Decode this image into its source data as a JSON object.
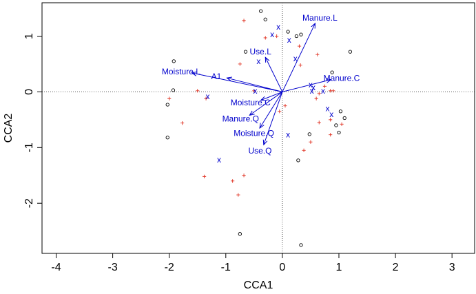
{
  "chart_data": {
    "type": "scatter",
    "xlabel": "CCA1",
    "ylabel": "CCA2",
    "xlim": [
      -4.25,
      3.4
    ],
    "ylim": [
      -2.9,
      1.6
    ],
    "x_ticks": [
      "-4",
      "-3",
      "-2",
      "-1",
      "0",
      "1",
      "2",
      "3"
    ],
    "y_ticks": [
      "-2",
      "-1",
      "0",
      "1"
    ],
    "reference_lines": {
      "x": 0,
      "y": 0,
      "style": "dotted"
    },
    "colors": {
      "sites": "#000000",
      "species": "#e03020",
      "centroids": "#0000cc",
      "arrows": "#0000cc"
    },
    "site_points": {
      "marker": "circle",
      "points": [
        [
          -0.38,
          1.45
        ],
        [
          -0.3,
          1.3
        ],
        [
          0.1,
          1.08
        ],
        [
          0.25,
          1.0
        ],
        [
          0.33,
          1.03
        ],
        [
          -0.65,
          0.72
        ],
        [
          1.2,
          0.72
        ],
        [
          -1.92,
          0.55
        ],
        [
          0.88,
          0.35
        ],
        [
          -1.93,
          0.03
        ],
        [
          -2.03,
          -0.23
        ],
        [
          1.03,
          -0.35
        ],
        [
          1.1,
          -0.47
        ],
        [
          0.95,
          -0.6
        ],
        [
          1.0,
          -0.73
        ],
        [
          0.48,
          -0.76
        ],
        [
          -2.03,
          -0.82
        ],
        [
          0.28,
          -1.23
        ],
        [
          -0.75,
          -2.55
        ],
        [
          0.33,
          -2.75
        ]
      ]
    },
    "species_points": {
      "marker": "plus",
      "points": [
        [
          -0.68,
          1.28
        ],
        [
          -0.1,
          1.0
        ],
        [
          -0.3,
          0.97
        ],
        [
          0.3,
          0.82
        ],
        [
          0.62,
          0.67
        ],
        [
          -0.75,
          0.5
        ],
        [
          0.32,
          0.48
        ],
        [
          -1.5,
          0.02
        ],
        [
          -1.35,
          -0.12
        ],
        [
          -2.0,
          -0.12
        ],
        [
          -0.5,
          0.02
        ],
        [
          0.75,
          0.1
        ],
        [
          0.85,
          0.02
        ],
        [
          0.9,
          0.02
        ],
        [
          0.65,
          -0.03
        ],
        [
          0.6,
          -0.12
        ],
        [
          0.05,
          -0.25
        ],
        [
          -0.05,
          -0.35
        ],
        [
          0.85,
          -0.5
        ],
        [
          0.65,
          -0.55
        ],
        [
          -1.77,
          -0.56
        ],
        [
          1.05,
          -0.58
        ],
        [
          0.85,
          -0.77
        ],
        [
          0.5,
          -0.9
        ],
        [
          0.38,
          -1.05
        ],
        [
          -1.38,
          -1.52
        ],
        [
          -0.68,
          -1.5
        ],
        [
          -0.88,
          -1.6
        ],
        [
          -0.78,
          -1.85
        ]
      ]
    },
    "centroid_points": {
      "marker": "x",
      "points": [
        [
          -0.07,
          1.17
        ],
        [
          -0.18,
          1.03
        ],
        [
          0.12,
          0.93
        ],
        [
          0.23,
          0.6
        ],
        [
          -0.42,
          0.55
        ],
        [
          0.5,
          0.13
        ],
        [
          0.52,
          0.02
        ],
        [
          0.55,
          0.08
        ],
        [
          0.72,
          0.02
        ],
        [
          -1.32,
          -0.08
        ],
        [
          -0.48,
          0.02
        ],
        [
          0.8,
          -0.3
        ],
        [
          0.87,
          -0.4
        ],
        [
          0.1,
          -0.77
        ],
        [
          -1.12,
          -1.22
        ]
      ]
    },
    "biplot_arrows": [
      {
        "label": "Manure.L",
        "x": 0.58,
        "y": 1.23
      },
      {
        "label": "Use.L",
        "x": -0.3,
        "y": 0.62
      },
      {
        "label": "Moisture.L",
        "x": -1.6,
        "y": 0.34
      },
      {
        "label": "A1",
        "x": -0.98,
        "y": 0.25
      },
      {
        "label": "Manure.C",
        "x": 0.86,
        "y": 0.22
      },
      {
        "label": "Moisture.C",
        "x": -0.38,
        "y": -0.15
      },
      {
        "label": "Manure.Q",
        "x": -0.58,
        "y": -0.42
      },
      {
        "label": "Moisture.Q",
        "x": -0.4,
        "y": -0.65
      },
      {
        "label": "Use.Q",
        "x": -0.33,
        "y": -0.95
      }
    ]
  }
}
